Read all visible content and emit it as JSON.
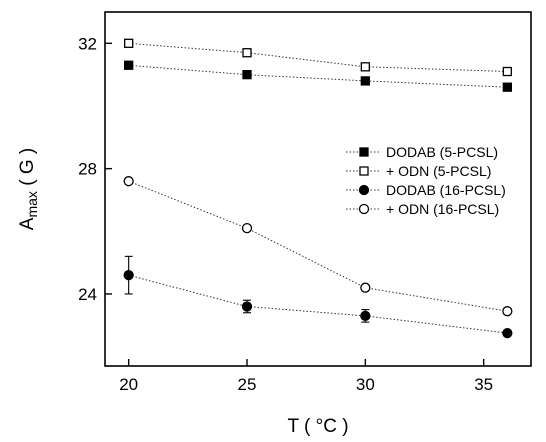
{
  "chart_data": {
    "type": "line",
    "xlabel": "T ( °C )",
    "ylabel_main": "A",
    "ylabel_sub": "max",
    "ylabel_unit": " ( G )",
    "xlim": [
      19,
      37
    ],
    "ylim": [
      21.7,
      33
    ],
    "xticks": [
      20,
      25,
      30,
      35
    ],
    "yticks": [
      24,
      28,
      32
    ],
    "grid": false,
    "legend_position": "right",
    "series": [
      {
        "name": "DODAB (5-PCSL)",
        "marker": "square-filled",
        "x": [
          20,
          25,
          30,
          36
        ],
        "y": [
          31.3,
          31.0,
          30.8,
          30.6
        ],
        "err": [
          0,
          0,
          0,
          0
        ]
      },
      {
        "name": "+ ODN (5-PCSL)",
        "marker": "square-open",
        "x": [
          20,
          25,
          30,
          36
        ],
        "y": [
          32.0,
          31.7,
          31.25,
          31.1
        ],
        "err": [
          0,
          0,
          0,
          0
        ]
      },
      {
        "name": "DODAB (16-PCSL)",
        "marker": "circle-filled",
        "x": [
          20,
          25,
          30,
          36
        ],
        "y": [
          24.6,
          23.6,
          23.3,
          22.75
        ],
        "err": [
          0.6,
          0.2,
          0.2,
          0
        ]
      },
      {
        "name": "+ ODN (16-PCSL)",
        "marker": "circle-open",
        "x": [
          20,
          25,
          30,
          36
        ],
        "y": [
          27.6,
          26.1,
          24.2,
          23.45
        ],
        "err": [
          0,
          0,
          0,
          0
        ]
      }
    ]
  }
}
